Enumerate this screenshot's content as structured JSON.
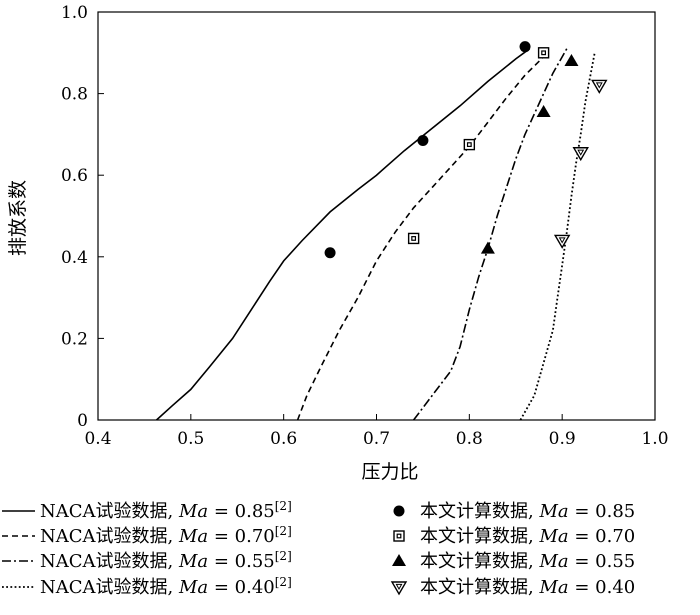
{
  "chart_data": {
    "type": "line",
    "xlabel": "压力比",
    "ylabel": "排放系数",
    "xlim": [
      0.4,
      1.0
    ],
    "ylim": [
      0,
      1.0
    ],
    "xticks": [
      "0.4",
      "0.5",
      "0.6",
      "0.7",
      "0.8",
      "0.9",
      "1.0"
    ],
    "yticks": [
      "0",
      "0.2",
      "0.4",
      "0.6",
      "0.8",
      "1.0"
    ],
    "grid": false,
    "legend_position": "bottom",
    "series": [
      {
        "name": "NACA试验数据, Ma = 0.85[2]",
        "legend_prefix": "NACA试验数据, ",
        "legend_ma": "Ma",
        "legend_value": " = 0.85",
        "legend_ref": "[2]",
        "kind": "line",
        "style": "solid",
        "x": [
          0.463,
          0.48,
          0.5,
          0.52,
          0.545,
          0.565,
          0.585,
          0.6,
          0.62,
          0.65,
          0.68,
          0.7,
          0.73,
          0.76,
          0.79,
          0.82,
          0.85,
          0.865
        ],
        "y": [
          0,
          0.035,
          0.075,
          0.13,
          0.2,
          0.27,
          0.34,
          0.39,
          0.44,
          0.51,
          0.565,
          0.6,
          0.66,
          0.715,
          0.77,
          0.83,
          0.885,
          0.91
        ]
      },
      {
        "name": "NACA试验数据, Ma = 0.70[2]",
        "legend_prefix": "NACA试验数据, ",
        "legend_ma": "Ma",
        "legend_value": " = 0.70",
        "legend_ref": "[2]",
        "kind": "line",
        "style": "dashed",
        "x": [
          0.615,
          0.625,
          0.64,
          0.66,
          0.68,
          0.7,
          0.72,
          0.74,
          0.76,
          0.78,
          0.8,
          0.82,
          0.84,
          0.86,
          0.88
        ],
        "y": [
          0,
          0.06,
          0.13,
          0.22,
          0.3,
          0.39,
          0.46,
          0.52,
          0.57,
          0.62,
          0.67,
          0.73,
          0.79,
          0.845,
          0.89
        ]
      },
      {
        "name": "NACA试验数据, Ma = 0.55[2]",
        "legend_prefix": "NACA试验数据, ",
        "legend_ma": "Ma",
        "legend_value": " = 0.55",
        "legend_ref": "[2]",
        "kind": "line",
        "style": "dashdot",
        "x": [
          0.74,
          0.76,
          0.78,
          0.79,
          0.8,
          0.81,
          0.82,
          0.83,
          0.84,
          0.85,
          0.86,
          0.87,
          0.88,
          0.89,
          0.905
        ],
        "y": [
          0,
          0.06,
          0.12,
          0.18,
          0.27,
          0.35,
          0.42,
          0.5,
          0.57,
          0.64,
          0.7,
          0.75,
          0.8,
          0.85,
          0.91
        ]
      },
      {
        "name": "NACA试验数据, Ma = 0.40[2]",
        "legend_prefix": "NACA试验数据, ",
        "legend_ma": "Ma",
        "legend_value": " = 0.40",
        "legend_ref": "[2]",
        "kind": "line",
        "style": "dotted",
        "x": [
          0.855,
          0.87,
          0.88,
          0.89,
          0.895,
          0.9,
          0.905,
          0.91,
          0.915,
          0.92,
          0.925,
          0.935
        ],
        "y": [
          0,
          0.06,
          0.14,
          0.22,
          0.3,
          0.38,
          0.46,
          0.55,
          0.63,
          0.7,
          0.78,
          0.9
        ]
      },
      {
        "name": "本文计算数据, Ma = 0.85",
        "legend_prefix": "本文计算数据, ",
        "legend_ma": "Ma",
        "legend_value": " = 0.85",
        "kind": "marker",
        "marker": "circle",
        "x": [
          0.65,
          0.75,
          0.86
        ],
        "y": [
          0.41,
          0.685,
          0.915
        ]
      },
      {
        "name": "本文计算数据, Ma = 0.70",
        "legend_prefix": "本文计算数据, ",
        "legend_ma": "Ma",
        "legend_value": " = 0.70",
        "kind": "marker",
        "marker": "square",
        "x": [
          0.74,
          0.8,
          0.88
        ],
        "y": [
          0.445,
          0.675,
          0.9
        ]
      },
      {
        "name": "本文计算数据, Ma = 0.55",
        "legend_prefix": "本文计算数据, ",
        "legend_ma": "Ma",
        "legend_value": " = 0.55",
        "kind": "marker",
        "marker": "triangle-up",
        "x": [
          0.82,
          0.88,
          0.91
        ],
        "y": [
          0.42,
          0.755,
          0.88
        ]
      },
      {
        "name": "本文计算数据, Ma = 0.40",
        "legend_prefix": "本文计算数据, ",
        "legend_ma": "Ma",
        "legend_value": " = 0.40",
        "kind": "marker",
        "marker": "triangle-down",
        "x": [
          0.9,
          0.92,
          0.94
        ],
        "y": [
          0.44,
          0.655,
          0.82
        ]
      }
    ]
  }
}
